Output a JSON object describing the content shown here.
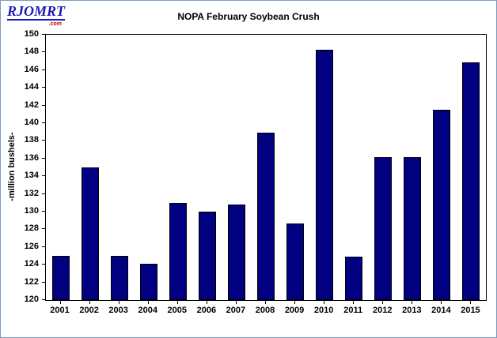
{
  "logo": {
    "text": "RJOMRT",
    "suffix": ".com"
  },
  "colors": {
    "bar": "#000080",
    "logo_blue": "#1a1ab8",
    "logo_red": "#cc0000",
    "page_border": "#7d9cc0"
  },
  "chart_data": {
    "type": "bar",
    "title": "NOPA February Soybean Crush",
    "xlabel": "",
    "ylabel": "-million bushels-",
    "categories": [
      "2001",
      "2002",
      "2003",
      "2004",
      "2005",
      "2006",
      "2007",
      "2008",
      "2009",
      "2010",
      "2011",
      "2012",
      "2013",
      "2014",
      "2015"
    ],
    "values": [
      125.0,
      135.0,
      125.0,
      124.1,
      131.0,
      130.0,
      130.8,
      138.9,
      128.7,
      148.3,
      124.9,
      136.2,
      136.2,
      141.5,
      146.9
    ],
    "ylim": [
      120,
      150
    ],
    "ytick_step": 2,
    "grid": false,
    "legend": false,
    "bar_color": "#000080"
  }
}
